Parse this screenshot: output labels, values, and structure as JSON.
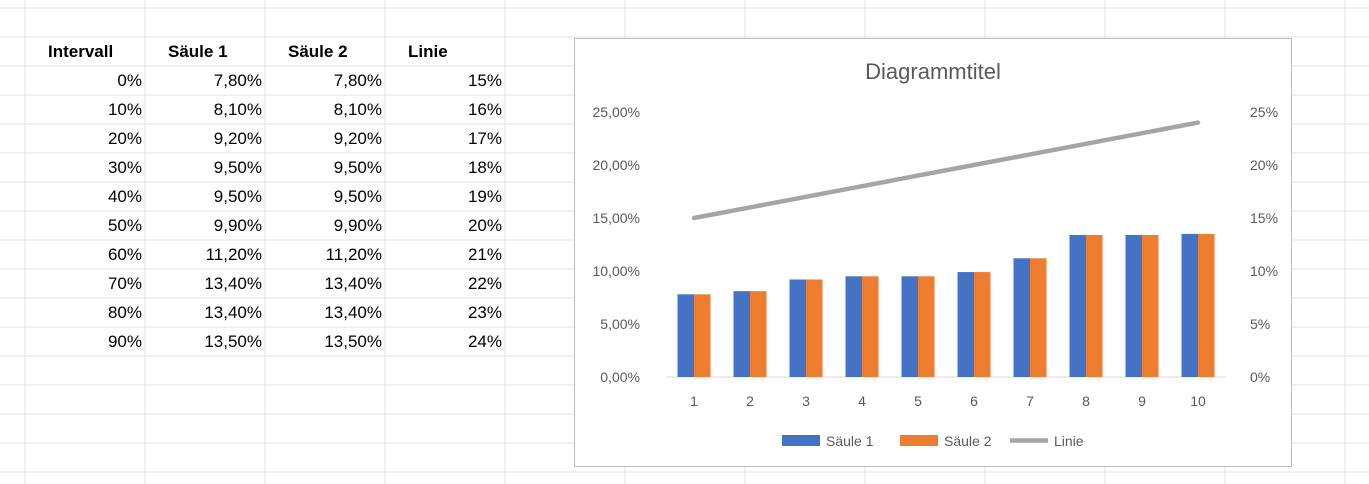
{
  "sheet": {
    "headers": [
      "Intervall",
      "Säule 1",
      "Säule 2",
      "Linie"
    ],
    "rows": [
      [
        "0%",
        "7,80%",
        "7,80%",
        "15%"
      ],
      [
        "10%",
        "8,10%",
        "8,10%",
        "16%"
      ],
      [
        "20%",
        "9,20%",
        "9,20%",
        "17%"
      ],
      [
        "30%",
        "9,50%",
        "9,50%",
        "18%"
      ],
      [
        "40%",
        "9,50%",
        "9,50%",
        "19%"
      ],
      [
        "50%",
        "9,90%",
        "9,90%",
        "20%"
      ],
      [
        "60%",
        "11,20%",
        "11,20%",
        "21%"
      ],
      [
        "70%",
        "13,40%",
        "13,40%",
        "22%"
      ],
      [
        "80%",
        "13,40%",
        "13,40%",
        "23%"
      ],
      [
        "90%",
        "13,50%",
        "13,50%",
        "24%"
      ]
    ]
  },
  "chart_data": {
    "type": "bar",
    "title": "Diagrammtitel",
    "categories": [
      "1",
      "2",
      "3",
      "4",
      "5",
      "6",
      "7",
      "8",
      "9",
      "10"
    ],
    "series": [
      {
        "name": "Säule 1",
        "type": "bar",
        "axis": "left",
        "color": "#4472C4",
        "values": [
          7.8,
          8.1,
          9.2,
          9.5,
          9.5,
          9.9,
          11.2,
          13.4,
          13.4,
          13.5
        ]
      },
      {
        "name": "Säule 2",
        "type": "bar",
        "axis": "left",
        "color": "#ED7D31",
        "values": [
          7.8,
          8.1,
          9.2,
          9.5,
          9.5,
          9.9,
          11.2,
          13.4,
          13.4,
          13.5
        ]
      },
      {
        "name": "Linie",
        "type": "line",
        "axis": "right",
        "color": "#A5A5A5",
        "values": [
          15,
          16,
          17,
          18,
          19,
          20,
          21,
          22,
          23,
          24
        ]
      }
    ],
    "ylim": [
      0,
      25
    ],
    "y_ticks": [
      "0,00%",
      "5,00%",
      "10,00%",
      "15,00%",
      "20,00%",
      "25,00%"
    ],
    "y2lim": [
      0,
      25
    ],
    "y2_ticks": [
      "0%",
      "5%",
      "10%",
      "15%",
      "20%",
      "25%"
    ],
    "legend": "bottom",
    "grid": false
  }
}
